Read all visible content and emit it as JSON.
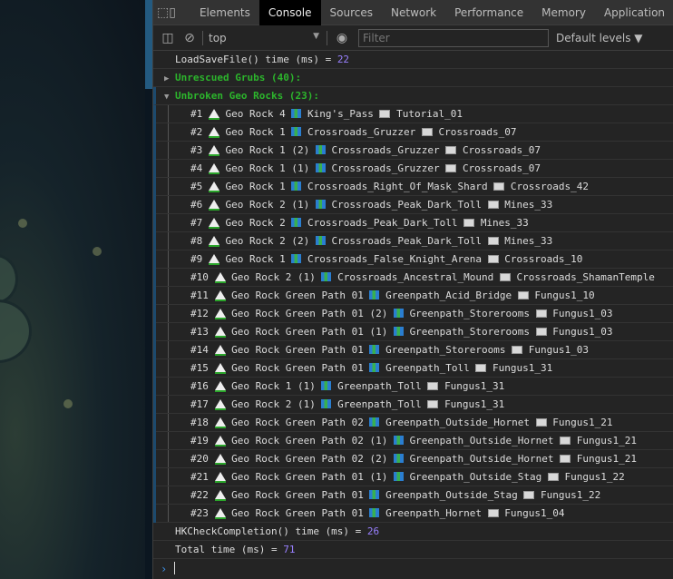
{
  "tabs": [
    "Elements",
    "Console",
    "Sources",
    "Network",
    "Performance",
    "Memory",
    "Application"
  ],
  "active_tab": "Console",
  "toolbar": {
    "context": "top",
    "filter_placeholder": "Filter",
    "levels": "Default levels ▼"
  },
  "console": {
    "load": {
      "text": "LoadSaveFile() time (ms) = ",
      "value": "22"
    },
    "grubs": {
      "label": "Unrescued Grubs (40):"
    },
    "rocks": {
      "label": "Unbroken Geo Rocks (23):",
      "items": [
        {
          "n": "#1",
          "rock": "Geo Rock 4",
          "scene": "King's_Pass",
          "room": "Tutorial_01"
        },
        {
          "n": "#2",
          "rock": "Geo Rock 1",
          "scene": "Crossroads_Gruzzer",
          "room": "Crossroads_07"
        },
        {
          "n": "#3",
          "rock": "Geo Rock 1 (2)",
          "scene": "Crossroads_Gruzzer",
          "room": "Crossroads_07"
        },
        {
          "n": "#4",
          "rock": "Geo Rock 1 (1)",
          "scene": "Crossroads_Gruzzer",
          "room": "Crossroads_07"
        },
        {
          "n": "#5",
          "rock": "Geo Rock 1",
          "scene": "Crossroads_Right_Of_Mask_Shard",
          "room": "Crossroads_42"
        },
        {
          "n": "#6",
          "rock": "Geo Rock 2 (1)",
          "scene": "Crossroads_Peak_Dark_Toll",
          "room": "Mines_33"
        },
        {
          "n": "#7",
          "rock": "Geo Rock 2",
          "scene": "Crossroads_Peak_Dark_Toll",
          "room": "Mines_33"
        },
        {
          "n": "#8",
          "rock": "Geo Rock 2 (2)",
          "scene": "Crossroads_Peak_Dark_Toll",
          "room": "Mines_33"
        },
        {
          "n": "#9",
          "rock": "Geo Rock 1",
          "scene": "Crossroads_False_Knight_Arena",
          "room": "Crossroads_10"
        },
        {
          "n": "#10",
          "rock": "Geo Rock 2 (1)",
          "scene": "Crossroads_Ancestral_Mound",
          "room": "Crossroads_ShamanTemple"
        },
        {
          "n": "#11",
          "rock": "Geo Rock Green Path 01",
          "scene": "Greenpath_Acid_Bridge",
          "room": "Fungus1_10"
        },
        {
          "n": "#12",
          "rock": "Geo Rock Green Path 01 (2)",
          "scene": "Greenpath_Storerooms",
          "room": "Fungus1_03"
        },
        {
          "n": "#13",
          "rock": "Geo Rock Green Path 01 (1)",
          "scene": "Greenpath_Storerooms",
          "room": "Fungus1_03"
        },
        {
          "n": "#14",
          "rock": "Geo Rock Green Path 01",
          "scene": "Greenpath_Storerooms",
          "room": "Fungus1_03"
        },
        {
          "n": "#15",
          "rock": "Geo Rock Green Path 01",
          "scene": "Greenpath_Toll",
          "room": "Fungus1_31"
        },
        {
          "n": "#16",
          "rock": "Geo Rock 1 (1)",
          "scene": "Greenpath_Toll",
          "room": "Fungus1_31"
        },
        {
          "n": "#17",
          "rock": "Geo Rock 2 (1)",
          "scene": "Greenpath_Toll",
          "room": "Fungus1_31"
        },
        {
          "n": "#18",
          "rock": "Geo Rock Green Path 02",
          "scene": "Greenpath_Outside_Hornet",
          "room": "Fungus1_21"
        },
        {
          "n": "#19",
          "rock": "Geo Rock Green Path 02 (1)",
          "scene": "Greenpath_Outside_Hornet",
          "room": "Fungus1_21"
        },
        {
          "n": "#20",
          "rock": "Geo Rock Green Path 02 (2)",
          "scene": "Greenpath_Outside_Hornet",
          "room": "Fungus1_21"
        },
        {
          "n": "#21",
          "rock": "Geo Rock Green Path 01 (1)",
          "scene": "Greenpath_Outside_Stag",
          "room": "Fungus1_22"
        },
        {
          "n": "#22",
          "rock": "Geo Rock Green Path 01",
          "scene": "Greenpath_Outside_Stag",
          "room": "Fungus1_22"
        },
        {
          "n": "#23",
          "rock": "Geo Rock Green Path 01",
          "scene": "Greenpath_Hornet",
          "room": "Fungus1_04"
        }
      ]
    },
    "check": {
      "text": "HKCheckCompletion() time (ms) = ",
      "value": "26"
    },
    "total": {
      "text": "Total time (ms) = ",
      "value": "71"
    },
    "prompt": "›"
  },
  "colors": {
    "group": "#2cb52c",
    "number": "#9980ff",
    "prompt": "#3d8fe6"
  }
}
